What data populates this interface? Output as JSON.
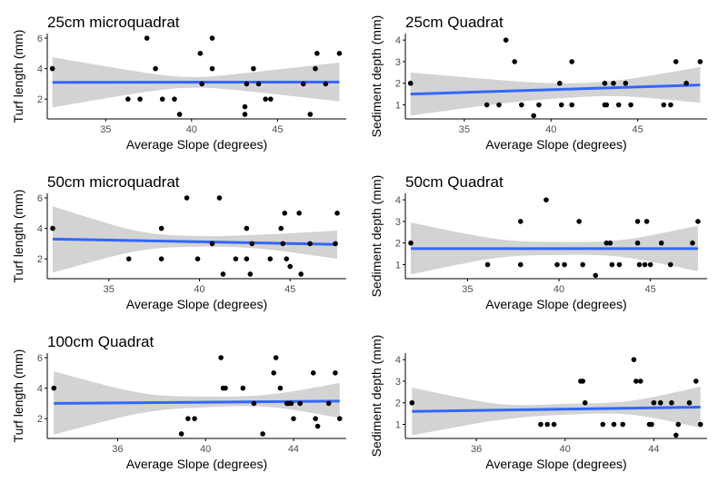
{
  "colors": {
    "background": "#ffffff",
    "ribbon": "#d3d3d3",
    "fit_line": "#3366ff",
    "points": "#000000",
    "axis": "#000000",
    "tick_text": "#4d4d4d"
  },
  "chart_data": [
    {
      "type": "scatter",
      "title": "25cm microquadrat",
      "xlabel": "Average Slope (degrees)",
      "ylabel": "Turf length (mm)",
      "xlim": [
        31.6,
        49.0
      ],
      "ylim": [
        0.7,
        6.3
      ],
      "x_ticks": [
        35,
        40,
        45
      ],
      "y_ticks": [
        2,
        4,
        6
      ],
      "grid": false,
      "legend": "none",
      "points": [
        [
          31.9,
          4
        ],
        [
          36.3,
          2
        ],
        [
          37.0,
          2
        ],
        [
          37.4,
          6
        ],
        [
          37.9,
          4
        ],
        [
          38.3,
          2
        ],
        [
          39.0,
          2
        ],
        [
          39.3,
          1
        ],
        [
          40.5,
          5
        ],
        [
          40.6,
          3
        ],
        [
          41.2,
          6
        ],
        [
          41.2,
          4
        ],
        [
          43.1,
          1
        ],
        [
          43.1,
          1.5
        ],
        [
          43.2,
          3
        ],
        [
          43.6,
          4
        ],
        [
          43.9,
          3
        ],
        [
          44.3,
          2
        ],
        [
          44.6,
          2
        ],
        [
          46.5,
          3
        ],
        [
          46.9,
          1
        ],
        [
          47.2,
          4
        ],
        [
          47.3,
          5
        ],
        [
          47.8,
          3
        ],
        [
          48.6,
          5
        ]
      ],
      "fit": {
        "x": [
          31.9,
          48.6
        ],
        "y": [
          3.1,
          3.12
        ]
      },
      "ci": {
        "x": [
          31.9,
          37.5,
          40.2,
          43.0,
          48.6
        ],
        "lower": [
          1.45,
          2.5,
          2.75,
          2.55,
          1.85
        ],
        "upper": [
          4.75,
          3.7,
          3.45,
          3.7,
          4.4
        ]
      }
    },
    {
      "type": "scatter",
      "title": "25cm Quadrat",
      "xlabel": "Average Slope (degrees)",
      "ylabel": "Sediment depth (mm)",
      "xlim": [
        31.6,
        49.0
      ],
      "ylim": [
        0.35,
        4.3
      ],
      "x_ticks": [
        35,
        40,
        45
      ],
      "y_ticks": [
        1,
        2,
        3,
        4
      ],
      "grid": false,
      "legend": "none",
      "points": [
        [
          31.9,
          2
        ],
        [
          36.3,
          1
        ],
        [
          37.0,
          1
        ],
        [
          37.4,
          4
        ],
        [
          37.9,
          3
        ],
        [
          38.3,
          1
        ],
        [
          39.0,
          0.5
        ],
        [
          39.3,
          1
        ],
        [
          40.5,
          2
        ],
        [
          40.6,
          1
        ],
        [
          41.2,
          3
        ],
        [
          41.2,
          1
        ],
        [
          43.1,
          1
        ],
        [
          43.1,
          2
        ],
        [
          43.2,
          1
        ],
        [
          43.6,
          2
        ],
        [
          43.9,
          1
        ],
        [
          44.3,
          2
        ],
        [
          44.6,
          1
        ],
        [
          46.5,
          1
        ],
        [
          46.9,
          1
        ],
        [
          47.2,
          3
        ],
        [
          47.8,
          2
        ],
        [
          48.6,
          3
        ]
      ],
      "fit": {
        "x": [
          31.9,
          48.6
        ],
        "y": [
          1.5,
          1.92
        ]
      },
      "ci": {
        "x": [
          31.9,
          37.0,
          40.5,
          44.0,
          48.6
        ],
        "lower": [
          0.5,
          1.05,
          1.3,
          1.4,
          1.1
        ],
        "upper": [
          2.5,
          2.15,
          2.0,
          2.15,
          2.75
        ]
      }
    },
    {
      "type": "scatter",
      "title": "50cm microquadrat",
      "xlabel": "Average Slope (degrees)",
      "ylabel": "Turf length (mm)",
      "xlim": [
        31.6,
        48.1
      ],
      "ylim": [
        0.7,
        6.3
      ],
      "x_ticks": [
        35,
        40,
        45
      ],
      "y_ticks": [
        2,
        4,
        6
      ],
      "grid": false,
      "legend": "none",
      "points": [
        [
          31.9,
          4
        ],
        [
          36.1,
          2
        ],
        [
          37.9,
          4
        ],
        [
          37.9,
          2
        ],
        [
          39.3,
          6
        ],
        [
          39.9,
          2
        ],
        [
          40.7,
          3
        ],
        [
          41.1,
          6
        ],
        [
          41.3,
          1
        ],
        [
          42.0,
          2
        ],
        [
          42.6,
          4
        ],
        [
          42.6,
          2
        ],
        [
          42.8,
          1
        ],
        [
          42.9,
          3
        ],
        [
          43.9,
          2
        ],
        [
          44.5,
          4
        ],
        [
          44.6,
          3
        ],
        [
          44.7,
          5
        ],
        [
          44.8,
          2
        ],
        [
          45.0,
          1.5
        ],
        [
          45.5,
          5
        ],
        [
          45.6,
          1
        ],
        [
          46.1,
          3
        ],
        [
          47.6,
          5
        ],
        [
          47.5,
          3
        ]
      ],
      "fit": {
        "x": [
          31.9,
          47.6
        ],
        "y": [
          3.3,
          2.95
        ]
      },
      "ci": {
        "x": [
          31.9,
          36.5,
          40.0,
          43.5,
          47.6
        ],
        "lower": [
          1.1,
          2.5,
          2.8,
          2.65,
          2.0
        ],
        "upper": [
          5.45,
          3.85,
          3.5,
          3.6,
          3.85
        ]
      }
    },
    {
      "type": "scatter",
      "title": "50cm Quadrat",
      "xlabel": "Average Slope (degrees)",
      "ylabel": "Sediment depth (mm)",
      "xlim": [
        31.6,
        48.1
      ],
      "ylim": [
        0.35,
        4.3
      ],
      "x_ticks": [
        35,
        40,
        45
      ],
      "y_ticks": [
        1,
        2,
        3,
        4
      ],
      "grid": false,
      "legend": "none",
      "points": [
        [
          31.9,
          2
        ],
        [
          36.1,
          1
        ],
        [
          37.9,
          3
        ],
        [
          37.9,
          1
        ],
        [
          39.3,
          4
        ],
        [
          39.9,
          1
        ],
        [
          40.3,
          1
        ],
        [
          41.1,
          3
        ],
        [
          41.3,
          1
        ],
        [
          42.0,
          0.5
        ],
        [
          42.6,
          2
        ],
        [
          42.8,
          2
        ],
        [
          42.9,
          1
        ],
        [
          43.3,
          1
        ],
        [
          44.3,
          2
        ],
        [
          44.3,
          3
        ],
        [
          44.4,
          1
        ],
        [
          44.7,
          1
        ],
        [
          44.8,
          3
        ],
        [
          45.0,
          1
        ],
        [
          45.6,
          2
        ],
        [
          46.1,
          1
        ],
        [
          47.3,
          2
        ],
        [
          47.6,
          3
        ]
      ],
      "fit": {
        "x": [
          31.9,
          47.6
        ],
        "y": [
          1.74,
          1.74
        ]
      },
      "ci": {
        "x": [
          31.9,
          36.5,
          40.0,
          43.5,
          47.6
        ],
        "lower": [
          0.55,
          1.3,
          1.45,
          1.35,
          0.7
        ],
        "upper": [
          2.95,
          2.2,
          2.05,
          2.15,
          2.8
        ]
      }
    },
    {
      "type": "scatter",
      "title": "100cm Quadrat",
      "xlabel": "Average Slope (degrees)",
      "ylabel": "Turf length (mm)",
      "xlim": [
        32.8,
        46.4
      ],
      "ylim": [
        0.7,
        6.3
      ],
      "x_ticks": [
        36,
        40,
        44
      ],
      "y_ticks": [
        2,
        4,
        6
      ],
      "grid": false,
      "legend": "none",
      "points": [
        [
          33.1,
          4
        ],
        [
          38.9,
          1
        ],
        [
          39.2,
          2
        ],
        [
          39.5,
          2
        ],
        [
          40.7,
          6
        ],
        [
          40.8,
          4
        ],
        [
          40.9,
          4
        ],
        [
          41.7,
          4
        ],
        [
          42.2,
          3
        ],
        [
          42.6,
          1
        ],
        [
          43.1,
          5
        ],
        [
          43.2,
          6
        ],
        [
          43.4,
          4
        ],
        [
          43.7,
          3
        ],
        [
          43.8,
          3
        ],
        [
          43.9,
          3
        ],
        [
          44.0,
          2
        ],
        [
          44.3,
          3
        ],
        [
          44.9,
          5
        ],
        [
          45.0,
          2
        ],
        [
          45.1,
          1.5
        ],
        [
          45.6,
          3
        ],
        [
          45.9,
          5
        ],
        [
          46.1,
          2
        ]
      ],
      "fit": {
        "x": [
          33.1,
          46.1
        ],
        "y": [
          3.0,
          3.15
        ]
      },
      "ci": {
        "x": [
          33.1,
          37.0,
          40.0,
          43.0,
          46.1
        ],
        "lower": [
          0.95,
          2.35,
          2.75,
          2.75,
          2.05
        ],
        "upper": [
          5.1,
          3.7,
          3.45,
          3.6,
          4.35
        ]
      }
    },
    {
      "type": "scatter",
      "title": "",
      "xlabel": "Average Slope (degrees)",
      "ylabel": "Sediment depth (mm)",
      "xlim": [
        32.8,
        46.4
      ],
      "ylim": [
        0.35,
        4.3
      ],
      "x_ticks": [
        36,
        40,
        44
      ],
      "y_ticks": [
        1,
        2,
        3,
        4
      ],
      "grid": false,
      "legend": "none",
      "points": [
        [
          33.1,
          2
        ],
        [
          38.9,
          1
        ],
        [
          39.2,
          1
        ],
        [
          39.5,
          1
        ],
        [
          40.7,
          3
        ],
        [
          40.8,
          3
        ],
        [
          40.9,
          2
        ],
        [
          41.7,
          1
        ],
        [
          42.2,
          1
        ],
        [
          42.6,
          1
        ],
        [
          43.1,
          4
        ],
        [
          43.2,
          3
        ],
        [
          43.4,
          3
        ],
        [
          43.8,
          1
        ],
        [
          43.9,
          1
        ],
        [
          44.0,
          2
        ],
        [
          44.3,
          2
        ],
        [
          44.8,
          2
        ],
        [
          45.0,
          0.5
        ],
        [
          45.1,
          1
        ],
        [
          45.6,
          2
        ],
        [
          45.9,
          3
        ],
        [
          46.1,
          1
        ]
      ],
      "fit": {
        "x": [
          33.1,
          46.1
        ],
        "y": [
          1.6,
          1.8
        ]
      },
      "ci": {
        "x": [
          33.1,
          37.0,
          40.0,
          43.0,
          46.1
        ],
        "lower": [
          0.5,
          1.2,
          1.45,
          1.45,
          0.85
        ],
        "upper": [
          2.7,
          1.95,
          1.95,
          2.1,
          2.75
        ]
      }
    }
  ]
}
